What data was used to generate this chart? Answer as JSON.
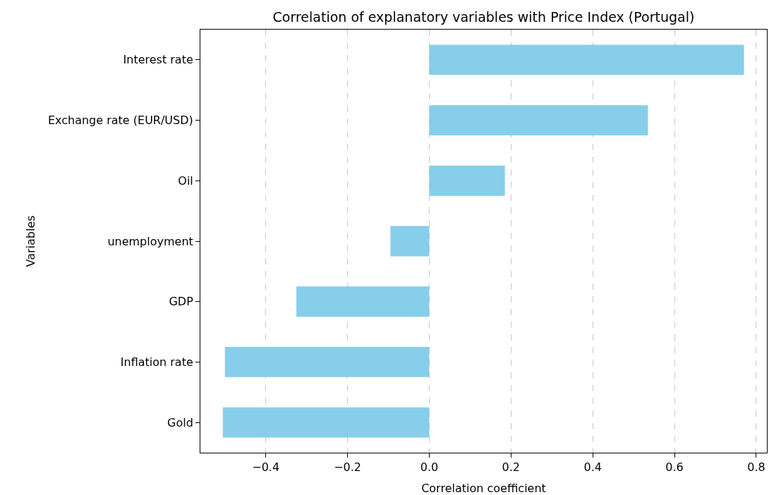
{
  "chart_data": {
    "type": "bar",
    "orientation": "horizontal",
    "title": "Correlation of explanatory variables with Price Index (Portugal)",
    "xlabel": "Correlation coefficient",
    "ylabel": "Variables",
    "categories": [
      "Interest rate",
      "Exchange rate (EUR/USD)",
      "Oil",
      "unemployment",
      "GDP",
      "Inflation rate",
      "Gold"
    ],
    "values": [
      0.77,
      0.535,
      0.185,
      -0.095,
      -0.325,
      -0.5,
      -0.505
    ],
    "color": "#87ceeb",
    "xlim": [
      -0.56,
      0.826
    ],
    "xticks": [
      {
        "value": -0.4,
        "label": "−0.4"
      },
      {
        "value": -0.2,
        "label": "−0.2"
      },
      {
        "value": 0,
        "label": "0.0"
      },
      {
        "value": 0.2,
        "label": "0.2"
      },
      {
        "value": 0.4,
        "label": "0.4"
      },
      {
        "value": 0.6,
        "label": "0.6"
      },
      {
        "value": 0.8,
        "label": "0.8"
      }
    ],
    "grid": "x",
    "line_style": "dashed"
  }
}
